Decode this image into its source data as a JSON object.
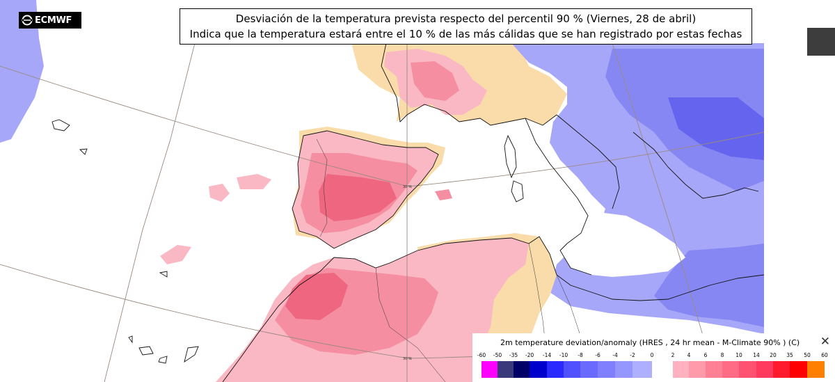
{
  "logo": {
    "text": "ECMWF"
  },
  "title": {
    "line1": "Desviación de la temperatura prevista respecto del percentil 90 % (Viernes, 28 de abril)",
    "line2": "Indica que la temperatura estará entre el 10 % de las más cálidas que se han registrado por estas fechas"
  },
  "map": {
    "gridline_labels": [
      "30°N",
      "30°N"
    ],
    "colors": {
      "ocean": "#ffffff",
      "land_neutral": "#f9dcaa",
      "warm_light": "#f9b8c3",
      "warm_mid": "#f58ea0",
      "warm_strong": "#ef6680",
      "cold_light": "#a7a7f9",
      "cold_mid": "#8787f4",
      "cold_strong": "#6464ee"
    }
  },
  "legend": {
    "title": "2m temperature deviation/anomaly (HRES , 24 hr mean - M-Climate 90% ) (C)",
    "close_icon": "close-icon",
    "ticks": [
      "-60",
      "-50",
      "-35",
      "-20",
      "-14",
      "-10",
      "-8",
      "-6",
      "-4",
      "-2",
      "0",
      "2",
      "4",
      "6",
      "8",
      "10",
      "14",
      "20",
      "35",
      "50",
      "60"
    ],
    "colors": [
      "#ff00ff",
      "#3a3a7a",
      "#000066",
      "#0000cc",
      "#2a2aff",
      "#5050ff",
      "#6a6aff",
      "#8080ff",
      "#9696ff",
      "#afafff",
      "#ffffff",
      "#ffb1bf",
      "#ff9aab",
      "#ff8095",
      "#ff6a85",
      "#ff5270",
      "#ff3a5e",
      "#ff1a2e",
      "#ff0000",
      "#ff7f00"
    ]
  }
}
